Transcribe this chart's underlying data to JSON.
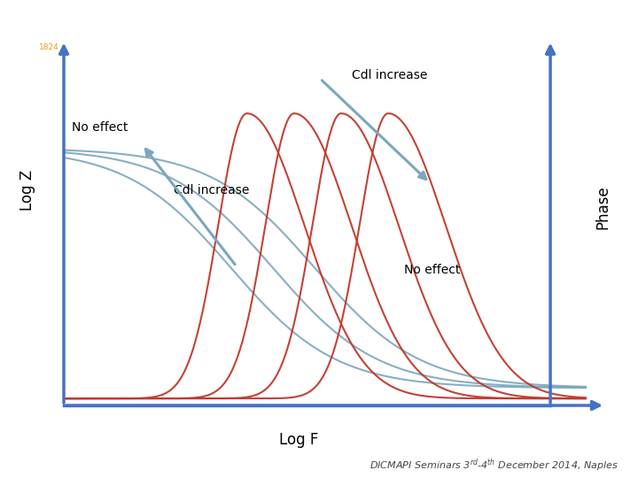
{
  "xlabel": "Log F",
  "ylabel_left": "Log Z",
  "ylabel_right": "Phase",
  "footer": "DICMAPI Seminars 3rd-4th December 2014, Naples",
  "bg_color": "#ffffff",
  "curve_color_red": "#c0392b",
  "curve_color_blue": "#7ba7bc",
  "axis_color": "#4472c4",
  "logz_label_no_effect": "No effect",
  "logz_label_cdl": "Cdl increase",
  "phase_label_cdl": "Cdl increase",
  "phase_label_no_effect": "No effect",
  "xmin": 0,
  "xmax": 10,
  "ymin": -0.05,
  "ymax": 1.05
}
